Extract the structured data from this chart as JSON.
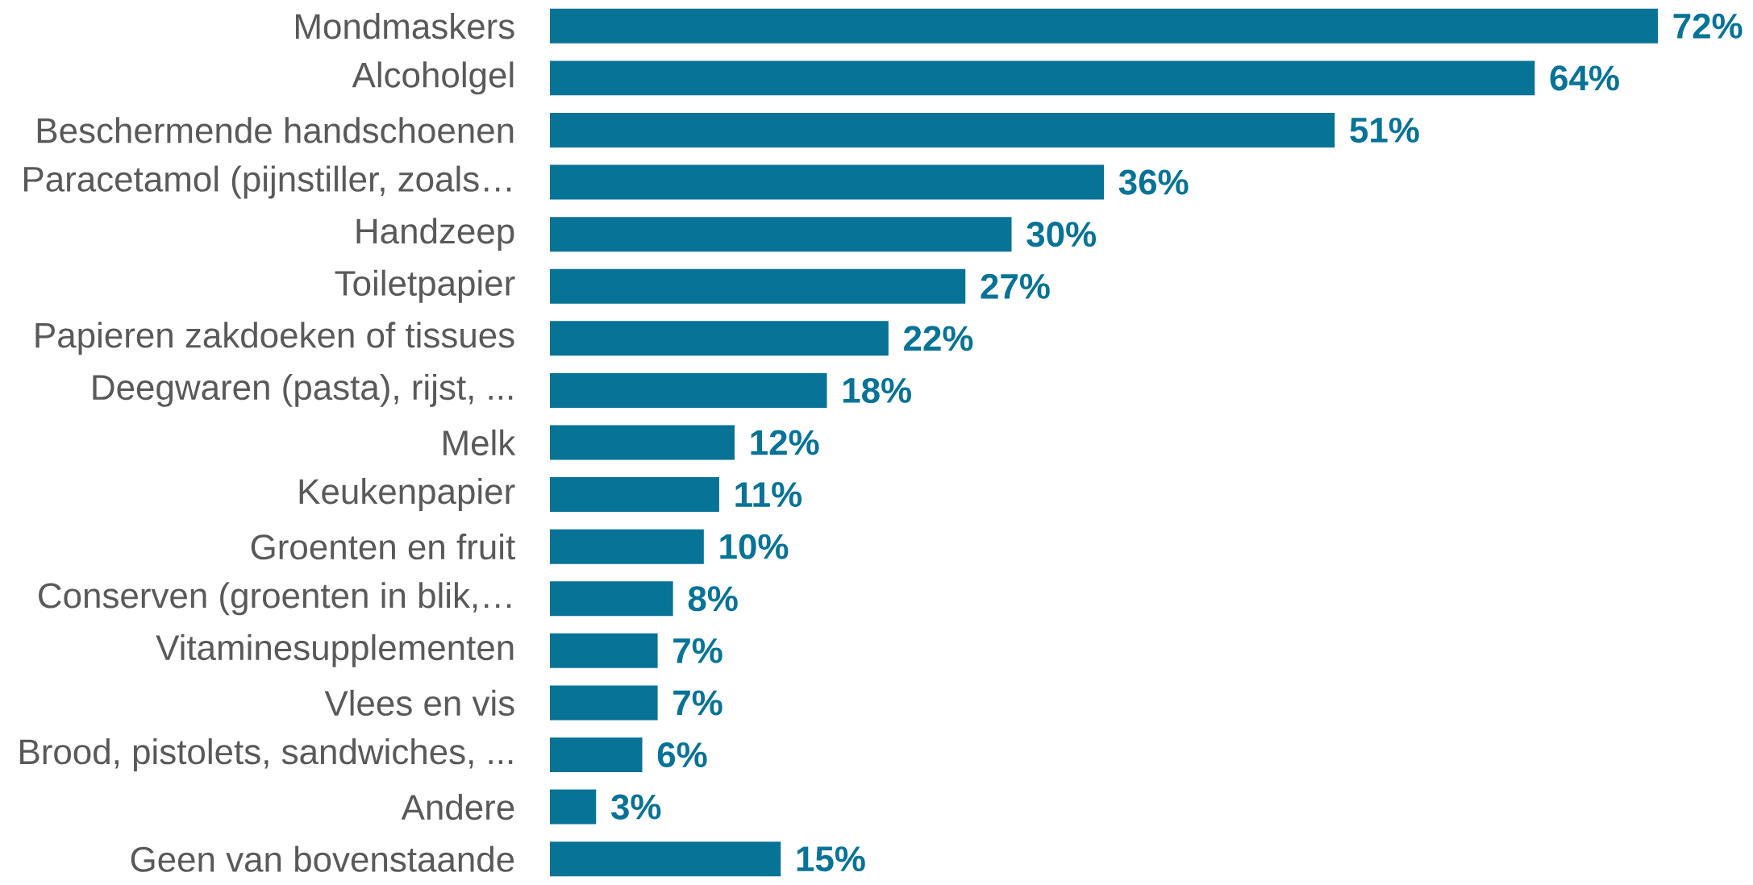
{
  "chart_data": {
    "type": "bar",
    "orientation": "horizontal",
    "color": "#077396",
    "xlim": [
      0,
      72
    ],
    "categories": [
      "Mondmaskers",
      "Alcoholgel",
      "Beschermende handschoenen",
      "Paracetamol (pijnstiller, zoals…",
      "Handzeep",
      "Toiletpapier",
      "Papieren zakdoeken of tissues",
      "Deegwaren (pasta), rijst,  ...",
      "Melk",
      "Keukenpapier",
      "Groenten en fruit",
      "Conserven (groenten in blik,…",
      "Vitaminesupplementen",
      "Vlees en vis",
      "Brood, pistolets, sandwiches,  ...",
      "Andere",
      "Geen van bovenstaande"
    ],
    "values": [
      72,
      64,
      51,
      36,
      30,
      27,
      22,
      18,
      12,
      11,
      10,
      8,
      7,
      7,
      6,
      3,
      15
    ],
    "value_labels": [
      "72%",
      "64%",
      "51%",
      "36%",
      "30%",
      "27%",
      "22%",
      "18%",
      "12%",
      "11%",
      "10%",
      "8%",
      "7%",
      "7%",
      "6%",
      "3%",
      "15%"
    ]
  }
}
